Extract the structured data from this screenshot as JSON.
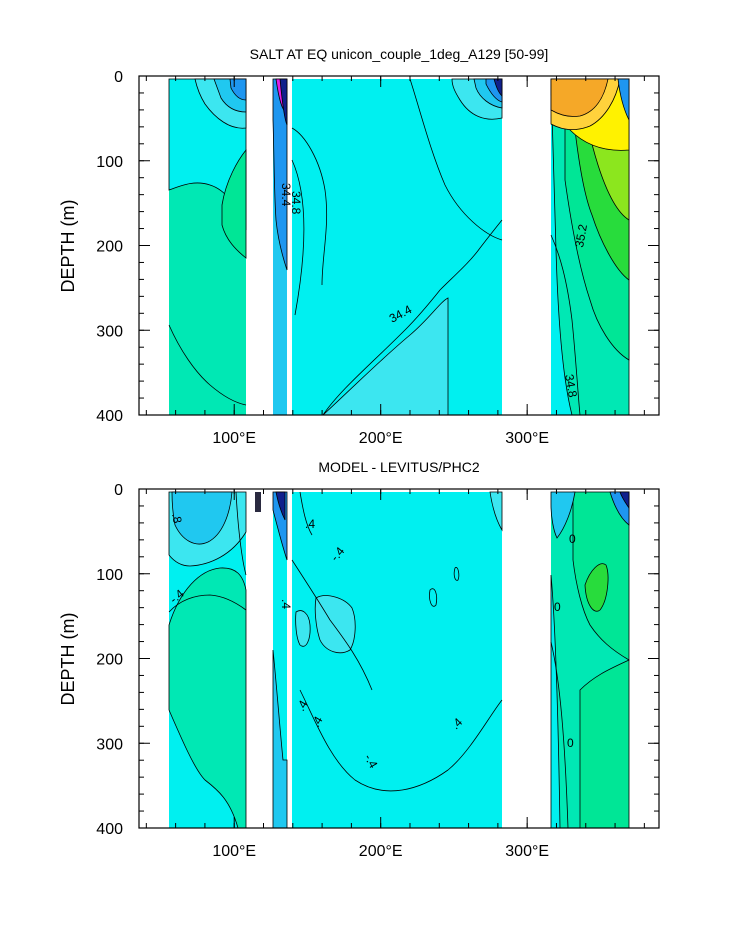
{
  "colors": {
    "cyan": "#00f0f0",
    "light_cyan": "#3ce6f0",
    "sky": "#20c8f0",
    "blue": "#1e96f0",
    "dark_blue": "#1a46d2",
    "navy": "#10208c",
    "magenta": "#e01ee6",
    "teal_green": "#00e8b4",
    "sea_green": "#00e696",
    "green": "#28dc3c",
    "yellow_green": "#8ce61e",
    "yellow": "#fff200",
    "light_orange": "#ffd23c",
    "orange": "#f5a828",
    "land": "#ffffff"
  },
  "chart_data": [
    {
      "type": "contour",
      "title": "SALT AT EQ unicon_couple_1deg_A129 [50-99]",
      "xlabel": "",
      "ylabel": "DEPTH (m)",
      "xlim": [
        35,
        390
      ],
      "ylim": [
        400,
        0
      ],
      "x_ticks": [
        100,
        200,
        300
      ],
      "x_tick_labels": [
        "100°E",
        "200°E",
        "300°E"
      ],
      "y_ticks": [
        0,
        100,
        200,
        300,
        400
      ],
      "y_tick_labels": [
        "0",
        "100",
        "200",
        "300",
        "400"
      ],
      "contour_labels": [
        "34.8",
        "34.4",
        "34.4",
        "35.2",
        "34.8"
      ]
    },
    {
      "type": "contour",
      "title": "MODEL - LEVITUS/PHC2",
      "xlabel": "",
      "ylabel": "DEPTH (m)",
      "xlim": [
        35,
        390
      ],
      "ylim": [
        400,
        0
      ],
      "x_ticks": [
        100,
        200,
        300
      ],
      "x_tick_labels": [
        "100°E",
        "200°E",
        "300°E"
      ],
      "y_ticks": [
        0,
        100,
        200,
        300,
        400
      ],
      "y_tick_labels": [
        "0",
        "100",
        "200",
        "300",
        "400"
      ],
      "contour_labels": [
        ".8",
        "-.4",
        "-.4",
        ".4",
        ".4",
        ".4",
        "-.4",
        ".4",
        "0",
        "0",
        "0",
        ".4"
      ]
    }
  ]
}
